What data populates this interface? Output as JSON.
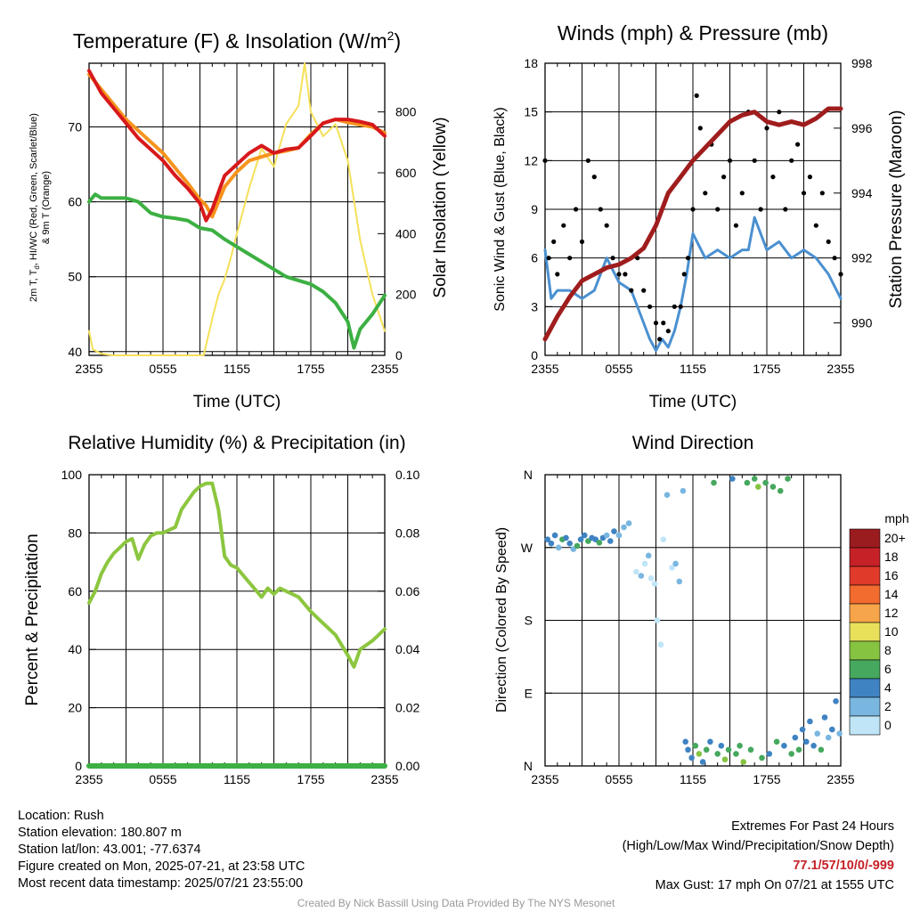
{
  "chart_data": [
    {
      "type": "line",
      "title": "Temperature (F) & Insolation (W/m",
      "title_sup": "2",
      "title_end": ")",
      "xlabel": "Time (UTC)",
      "ylabel_lines": [
        "2m T, T",
        "d",
        ", HI/WC (Red, Green, Scarlet/Blue)",
        "& 9m T (Orange)"
      ],
      "y2label": "Solar Insolation (Yellow)",
      "x_ticks": [
        "2355",
        "0555",
        "1155",
        "1755",
        "2355"
      ],
      "y_ticks": [
        40,
        50,
        60,
        70
      ],
      "y2_ticks": [
        0,
        200,
        400,
        600,
        800
      ],
      "ylim": [
        39.5,
        78.5
      ],
      "y2lim": [
        0,
        960
      ],
      "xlim": [
        0,
        24
      ],
      "grid": true,
      "series": [
        {
          "color": "#f7941d",
          "x": [
            0,
            1,
            2,
            3,
            4,
            5,
            6,
            7,
            8,
            9,
            9.5,
            10,
            11,
            12,
            13,
            14,
            15,
            16,
            17,
            18,
            19,
            20,
            21,
            22,
            23,
            24
          ],
          "values": [
            77,
            75,
            73,
            71,
            69.5,
            68,
            66.5,
            64.5,
            62.5,
            60.3,
            59.5,
            58,
            62,
            64,
            65.5,
            66,
            66.5,
            66.8,
            67.2,
            69,
            70.5,
            71,
            70.6,
            70.3,
            70,
            69.2
          ]
        },
        {
          "color": "#d7191c",
          "x": [
            0,
            1,
            2,
            3,
            4,
            5,
            6,
            7,
            8,
            9,
            9.5,
            10,
            11,
            12,
            13,
            14,
            15,
            16,
            17,
            18,
            19,
            20,
            21,
            22,
            23,
            24
          ],
          "values": [
            77.5,
            74.5,
            72.5,
            70.5,
            68.5,
            67,
            65.5,
            63.5,
            61.8,
            59.8,
            57.5,
            59,
            63.5,
            65,
            66.5,
            67.5,
            66.5,
            67,
            67.2,
            68.8,
            70.5,
            71,
            71,
            70.7,
            70.3,
            68.8
          ]
        },
        {
          "color": "#3cb043",
          "x": [
            0,
            0.5,
            1,
            2,
            3,
            4,
            5,
            6,
            7,
            8,
            9,
            10,
            11,
            12,
            13,
            14,
            15,
            16,
            17,
            18,
            19,
            20,
            21,
            21.5,
            22,
            23,
            24
          ],
          "values": [
            60,
            61,
            60.5,
            60.5,
            60.5,
            60,
            58.5,
            58,
            57.8,
            57.5,
            56.5,
            56.2,
            55,
            54,
            53,
            52,
            51,
            50,
            49.5,
            49,
            48,
            46.5,
            44,
            40.5,
            43,
            45,
            47.5
          ]
        },
        {
          "color": "#f5e05a",
          "x": [
            0,
            0.3,
            1,
            2,
            4,
            6,
            8,
            9.3,
            10,
            10.5,
            11,
            11.5,
            12,
            13,
            14,
            15,
            16,
            17,
            17.5,
            18,
            19,
            20,
            21,
            22,
            23,
            24
          ],
          "values": [
            80,
            20,
            5,
            0,
            0,
            0,
            0,
            0,
            120,
            200,
            250,
            320,
            400,
            550,
            680,
            620,
            760,
            820,
            960,
            800,
            720,
            760,
            640,
            380,
            200,
            80
          ]
        }
      ]
    },
    {
      "type": "scatter",
      "title": "Winds (mph) & Pressure (mb)",
      "xlabel": "Time (UTC)",
      "ylabel": "Sonic Wind & Gust (Blue, Black)",
      "y2label": "Station Pressure (Maroon)",
      "x_ticks": [
        "2355",
        "0555",
        "1155",
        "1755",
        "2355"
      ],
      "y_ticks": [
        0,
        3,
        6,
        9,
        12,
        15,
        18
      ],
      "y2_ticks": [
        990,
        992,
        994,
        996,
        998
      ],
      "ylim": [
        0,
        18
      ],
      "y2lim": [
        989,
        998
      ],
      "xlim": [
        0,
        24
      ],
      "grid": true,
      "wind": {
        "color": "#4a90d0",
        "x": [
          0,
          0.5,
          1,
          2,
          3,
          4,
          5,
          6,
          7,
          8,
          8.5,
          9,
          9.5,
          10,
          10.5,
          11,
          11.5,
          12,
          13,
          14,
          15,
          16,
          16.5,
          17,
          18,
          19,
          20,
          21,
          22,
          23,
          24
        ],
        "values": [
          6.5,
          3.5,
          4,
          4,
          3.5,
          4,
          6,
          4.5,
          4,
          2,
          1,
          0.3,
          1,
          0.5,
          1.5,
          3,
          5,
          7.5,
          6,
          6.5,
          6,
          6.5,
          6.5,
          8.5,
          6.5,
          7,
          6,
          6.5,
          6,
          5,
          3.5
        ]
      },
      "gust": {
        "color": "#000000",
        "x": [
          0,
          0.3,
          0.7,
          1,
          1.5,
          2,
          2.5,
          3,
          3.5,
          4,
          4.5,
          5,
          5.5,
          6,
          6.5,
          7,
          7.5,
          8,
          8.5,
          9,
          9.3,
          9.6,
          10,
          10.5,
          11,
          11.3,
          11.6,
          12,
          12.3,
          12.6,
          13,
          13.5,
          14,
          14.5,
          15,
          15.5,
          16,
          16.5,
          17,
          17.5,
          18,
          18.5,
          19,
          19.5,
          20,
          20.5,
          21,
          21.5,
          22,
          22.5,
          23,
          23.5,
          24
        ],
        "values": [
          12,
          6,
          7,
          5,
          8,
          6,
          9,
          7,
          12,
          11,
          9,
          8,
          6,
          5,
          5,
          4,
          6,
          4,
          3,
          2,
          1,
          2,
          1.5,
          3,
          3,
          5,
          6,
          9,
          16,
          14,
          10,
          13,
          9,
          11,
          12,
          8,
          10,
          15,
          12,
          9,
          14,
          11,
          15,
          9,
          12,
          13,
          10,
          11,
          8,
          10,
          7,
          6,
          5
        ]
      },
      "pressure": {
        "color": "#a01d1d",
        "x": [
          0,
          1,
          2,
          3,
          4,
          5,
          6,
          7,
          8,
          9,
          10,
          11,
          12,
          13,
          14,
          15,
          16,
          17,
          18,
          19,
          20,
          21,
          22,
          23,
          24
        ],
        "values": [
          989.5,
          990.2,
          990.8,
          991.3,
          991.5,
          991.7,
          991.8,
          992,
          992.3,
          993,
          994,
          994.5,
          995,
          995.4,
          995.8,
          996.2,
          996.4,
          996.5,
          996.2,
          996.1,
          996.2,
          996.1,
          996.3,
          996.6,
          996.6
        ]
      }
    },
    {
      "type": "line",
      "title": "Relative Humidity (%) & Precipitation (in)",
      "ylabel": "Percent & Precipitation",
      "x_ticks": [
        "2355",
        "0555",
        "1155",
        "1755",
        "2355"
      ],
      "y_ticks": [
        0,
        20,
        40,
        60,
        80,
        100
      ],
      "y2_ticks": [
        "0.00",
        "0.02",
        "0.04",
        "0.06",
        "0.08",
        "0.10"
      ],
      "ylim": [
        0,
        100
      ],
      "xlim": [
        0,
        24
      ],
      "grid": true,
      "humidity": {
        "color": "#8cc63f",
        "x": [
          0,
          0.5,
          1,
          1.5,
          2,
          2.5,
          3,
          3.5,
          4,
          4.5,
          5,
          5.5,
          6,
          6.5,
          7,
          7.5,
          8,
          8.5,
          9,
          9.5,
          10,
          10.5,
          11,
          11.5,
          12,
          13,
          14,
          14.5,
          15,
          15.5,
          16,
          17,
          18,
          19,
          20,
          21,
          21.5,
          22,
          23,
          24
        ],
        "values": [
          56,
          60,
          66,
          70,
          73,
          75,
          77,
          78,
          71,
          76,
          79,
          80,
          80,
          81,
          82,
          88,
          91,
          94,
          96,
          97,
          97,
          88,
          72,
          69,
          68,
          63,
          58,
          61,
          59,
          61,
          60,
          58,
          53,
          49,
          45,
          38,
          34,
          40,
          43,
          47
        ]
      },
      "precipitation": {
        "color": "#3cb043",
        "x": [
          0,
          24
        ],
        "values": [
          0,
          0
        ]
      }
    },
    {
      "type": "scatter",
      "title": "Wind Direction",
      "ylabel": "Direction (Colored By Speed)",
      "x_ticks": [
        "2355",
        "0555",
        "1155",
        "1755",
        "2355"
      ],
      "y_ticks": [
        "N",
        "E",
        "S",
        "W",
        "N"
      ],
      "ylim": [
        0,
        360
      ],
      "xlim": [
        0,
        24
      ],
      "grid": true,
      "colorbar": {
        "unit": "mph",
        "labels": [
          "20+",
          "18",
          "16",
          "14",
          "12",
          "10",
          "8",
          "6",
          "4",
          "2",
          "0"
        ],
        "colors": [
          "#9b1c1f",
          "#c62127",
          "#e03a2b",
          "#f26b2f",
          "#f7a54a",
          "#e8e05a",
          "#86c341",
          "#46a85e",
          "#3f83c2",
          "#79b6e0",
          "#bfe5f7"
        ]
      },
      "points": [
        {
          "x": 0.2,
          "dir": 280,
          "speed": 4
        },
        {
          "x": 0.5,
          "dir": 275,
          "speed": 5
        },
        {
          "x": 0.8,
          "dir": 285,
          "speed": 4
        },
        {
          "x": 1.1,
          "dir": 270,
          "speed": 3
        },
        {
          "x": 1.4,
          "dir": 280,
          "speed": 6
        },
        {
          "x": 1.7,
          "dir": 282,
          "speed": 4
        },
        {
          "x": 2.0,
          "dir": 275,
          "speed": 4
        },
        {
          "x": 2.3,
          "dir": 268,
          "speed": 3
        },
        {
          "x": 2.6,
          "dir": 272,
          "speed": 6
        },
        {
          "x": 2.9,
          "dir": 280,
          "speed": 4
        },
        {
          "x": 3.2,
          "dir": 285,
          "speed": 5
        },
        {
          "x": 3.5,
          "dir": 278,
          "speed": 6
        },
        {
          "x": 3.8,
          "dir": 282,
          "speed": 4
        },
        {
          "x": 4.1,
          "dir": 280,
          "speed": 5
        },
        {
          "x": 4.4,
          "dir": 276,
          "speed": 6
        },
        {
          "x": 4.7,
          "dir": 282,
          "speed": 4
        },
        {
          "x": 5.0,
          "dir": 285,
          "speed": 3
        },
        {
          "x": 5.3,
          "dir": 278,
          "speed": 4
        },
        {
          "x": 5.6,
          "dir": 290,
          "speed": 4
        },
        {
          "x": 6.0,
          "dir": 285,
          "speed": 3
        },
        {
          "x": 6.4,
          "dir": 295,
          "speed": 2
        },
        {
          "x": 6.8,
          "dir": 300,
          "speed": 2
        },
        {
          "x": 7.4,
          "dir": 240,
          "speed": 1
        },
        {
          "x": 7.8,
          "dir": 235,
          "speed": 2
        },
        {
          "x": 8.1,
          "dir": 250,
          "speed": 1
        },
        {
          "x": 8.4,
          "dir": 260,
          "speed": 2
        },
        {
          "x": 8.6,
          "dir": 232,
          "speed": 1
        },
        {
          "x": 8.9,
          "dir": 225,
          "speed": 1
        },
        {
          "x": 9.1,
          "dir": 180,
          "speed": 0
        },
        {
          "x": 9.4,
          "dir": 150,
          "speed": 0
        },
        {
          "x": 9.6,
          "dir": 280,
          "speed": 1
        },
        {
          "x": 9.9,
          "dir": 335,
          "speed": 2
        },
        {
          "x": 10.3,
          "dir": 245,
          "speed": 1
        },
        {
          "x": 10.6,
          "dir": 250,
          "speed": 2
        },
        {
          "x": 10.9,
          "dir": 228,
          "speed": 2
        },
        {
          "x": 11.2,
          "dir": 340,
          "speed": 3
        },
        {
          "x": 11.4,
          "dir": 30,
          "speed": 4
        },
        {
          "x": 11.6,
          "dir": 20,
          "speed": 5
        },
        {
          "x": 11.9,
          "dir": 10,
          "speed": 4
        },
        {
          "x": 12.2,
          "dir": 25,
          "speed": 6
        },
        {
          "x": 12.5,
          "dir": 15,
          "speed": 9
        },
        {
          "x": 12.8,
          "dir": 5,
          "speed": 5
        },
        {
          "x": 13.1,
          "dir": 20,
          "speed": 6
        },
        {
          "x": 13.4,
          "dir": 30,
          "speed": 4
        },
        {
          "x": 13.7,
          "dir": 350,
          "speed": 6
        },
        {
          "x": 14.0,
          "dir": 15,
          "speed": 6
        },
        {
          "x": 14.3,
          "dir": 25,
          "speed": 4
        },
        {
          "x": 14.6,
          "dir": 8,
          "speed": 8
        },
        {
          "x": 14.9,
          "dir": 20,
          "speed": 6
        },
        {
          "x": 15.2,
          "dir": 355,
          "speed": 5
        },
        {
          "x": 15.5,
          "dir": 15,
          "speed": 7
        },
        {
          "x": 15.8,
          "dir": 25,
          "speed": 6
        },
        {
          "x": 16.1,
          "dir": 5,
          "speed": 8
        },
        {
          "x": 16.4,
          "dir": 350,
          "speed": 6
        },
        {
          "x": 16.7,
          "dir": 20,
          "speed": 6
        },
        {
          "x": 17.0,
          "dir": 355,
          "speed": 7
        },
        {
          "x": 17.3,
          "dir": 345,
          "speed": 8
        },
        {
          "x": 17.6,
          "dir": 10,
          "speed": 6
        },
        {
          "x": 17.9,
          "dir": 350,
          "speed": 6
        },
        {
          "x": 18.2,
          "dir": 15,
          "speed": 5
        },
        {
          "x": 18.5,
          "dir": 345,
          "speed": 7
        },
        {
          "x": 18.8,
          "dir": 30,
          "speed": 6
        },
        {
          "x": 19.1,
          "dir": 340,
          "speed": 6
        },
        {
          "x": 19.4,
          "dir": 25,
          "speed": 4
        },
        {
          "x": 19.7,
          "dir": 355,
          "speed": 6
        },
        {
          "x": 20.0,
          "dir": 15,
          "speed": 6
        },
        {
          "x": 20.3,
          "dir": 35,
          "speed": 4
        },
        {
          "x": 20.6,
          "dir": 20,
          "speed": 6
        },
        {
          "x": 20.9,
          "dir": 45,
          "speed": 4
        },
        {
          "x": 21.2,
          "dir": 30,
          "speed": 5
        },
        {
          "x": 21.5,
          "dir": 55,
          "speed": 4
        },
        {
          "x": 21.8,
          "dir": 25,
          "speed": 4
        },
        {
          "x": 22.1,
          "dir": 40,
          "speed": 3
        },
        {
          "x": 22.4,
          "dir": 20,
          "speed": 6
        },
        {
          "x": 22.7,
          "dir": 60,
          "speed": 4
        },
        {
          "x": 23.0,
          "dir": 35,
          "speed": 3
        },
        {
          "x": 23.3,
          "dir": 45,
          "speed": 4
        },
        {
          "x": 23.6,
          "dir": 80,
          "speed": 4
        },
        {
          "x": 23.9,
          "dir": 40,
          "speed": 3
        }
      ]
    }
  ],
  "station_info": [
    "Location: Rush",
    "Station elevation: 180.807 m",
    "Station lat/lon: 43.001; -77.6374",
    "Figure created on Mon, 2025-07-21, at 23:58 UTC",
    "Most recent data timestamp: 2025/07/21 23:55:00"
  ],
  "extremes": {
    "title": "Extremes For Past 24 Hours",
    "subtitle": "(High/Low/Max Wind/Precipitation/Snow Depth)",
    "values": "77.1/57/10/0/-999",
    "max_gust": "Max Gust: 17 mph On 07/21 at 1555 UTC"
  },
  "credit": "Created By Nick Bassill Using Data Provided By The NYS Mesonet"
}
